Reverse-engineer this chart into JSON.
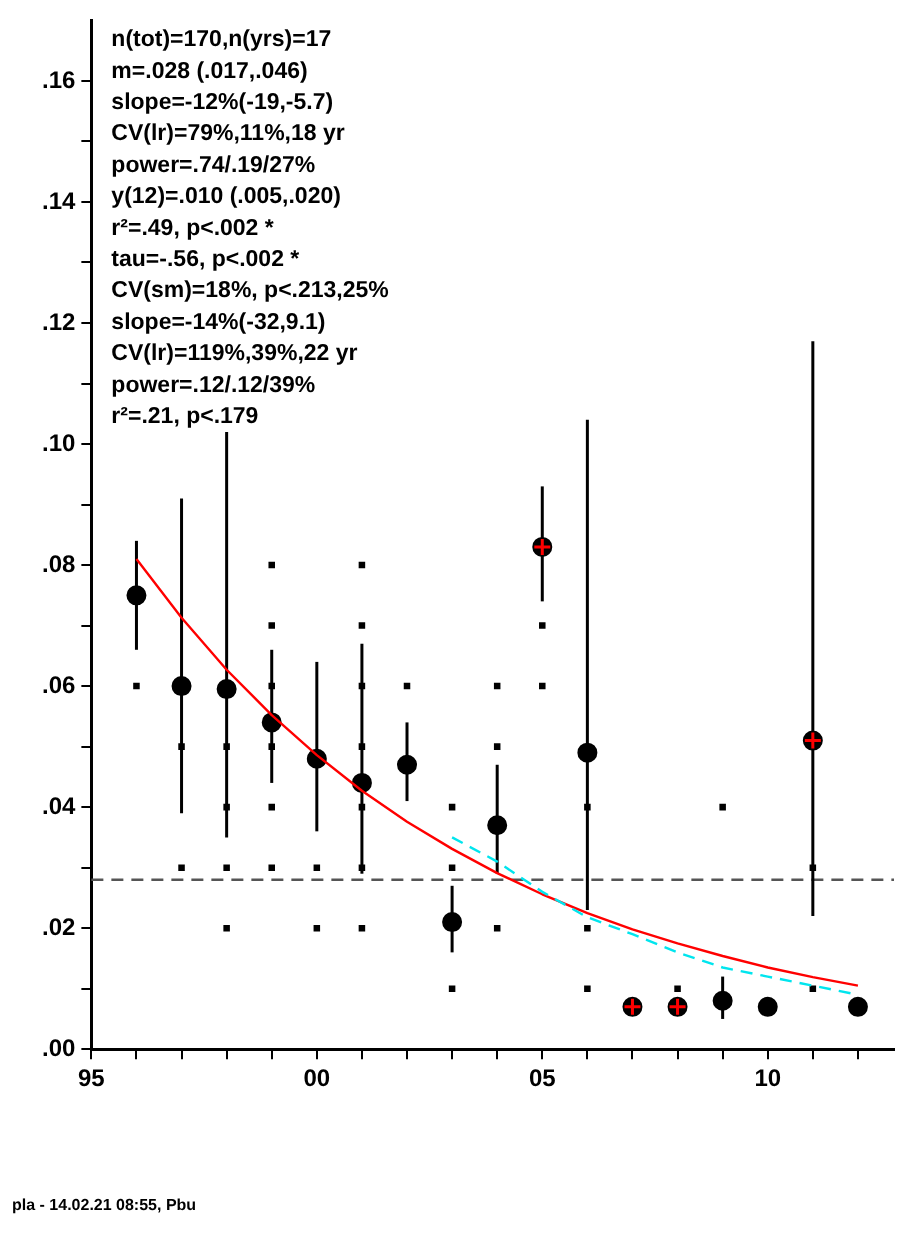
{
  "chart_data": {
    "type": "scatter",
    "xlim": [
      1995,
      2012.8
    ],
    "ylim": [
      0,
      0.17
    ],
    "xticks": [
      {
        "value": 1995,
        "label": "95"
      },
      {
        "value": 1996,
        "label": null
      },
      {
        "value": 1997,
        "label": null
      },
      {
        "value": 1998,
        "label": null
      },
      {
        "value": 1999,
        "label": null
      },
      {
        "value": 2000,
        "label": "00"
      },
      {
        "value": 2001,
        "label": null
      },
      {
        "value": 2002,
        "label": null
      },
      {
        "value": 2003,
        "label": null
      },
      {
        "value": 2004,
        "label": null
      },
      {
        "value": 2005,
        "label": "05"
      },
      {
        "value": 2006,
        "label": null
      },
      {
        "value": 2007,
        "label": null
      },
      {
        "value": 2008,
        "label": null
      },
      {
        "value": 2009,
        "label": null
      },
      {
        "value": 2010,
        "label": "10"
      },
      {
        "value": 2011,
        "label": null
      },
      {
        "value": 2012,
        "label": null
      }
    ],
    "yticks": [
      {
        "value": 0,
        "label": ".00"
      },
      {
        "value": 0.01,
        "label": null
      },
      {
        "value": 0.02,
        "label": ".02"
      },
      {
        "value": 0.03,
        "label": null
      },
      {
        "value": 0.04,
        "label": ".04"
      },
      {
        "value": 0.05,
        "label": null
      },
      {
        "value": 0.06,
        "label": ".06"
      },
      {
        "value": 0.07,
        "label": null
      },
      {
        "value": 0.08,
        "label": ".08"
      },
      {
        "value": 0.09,
        "label": null
      },
      {
        "value": 0.1,
        "label": ".10"
      },
      {
        "value": 0.11,
        "label": null
      },
      {
        "value": 0.12,
        "label": ".12"
      },
      {
        "value": 0.13,
        "label": null
      },
      {
        "value": 0.14,
        "label": ".14"
      },
      {
        "value": 0.15,
        "label": null
      },
      {
        "value": 0.16,
        "label": ".16"
      }
    ],
    "grid": false,
    "legend": false,
    "series": [
      {
        "marker": "square",
        "color": "#000000",
        "x": [
          1996,
          1997,
          1997,
          1998,
          1998,
          1998,
          1998,
          1999,
          1999,
          1999,
          1999,
          1999,
          1999,
          2000,
          2000,
          2001,
          2001,
          2001,
          2001,
          2001,
          2001,
          2001,
          2002,
          2003,
          2003,
          2003,
          2004,
          2004,
          2004,
          2005,
          2005,
          2006,
          2006,
          2006,
          2008,
          2009,
          2011,
          2011
        ],
        "values": [
          0.06,
          0.05,
          0.03,
          0.05,
          0.04,
          0.03,
          0.02,
          0.08,
          0.07,
          0.06,
          0.05,
          0.04,
          0.03,
          0.03,
          0.02,
          0.08,
          0.07,
          0.06,
          0.05,
          0.04,
          0.03,
          0.02,
          0.06,
          0.04,
          0.03,
          0.01,
          0.06,
          0.05,
          0.02,
          0.07,
          0.06,
          0.04,
          0.02,
          0.01,
          0.01,
          0.04,
          0.03,
          0.01
        ]
      },
      {
        "marker": "circle",
        "color": "#000000",
        "x": [
          1996,
          1997,
          1998,
          1999,
          2000,
          2001,
          2002,
          2003,
          2004,
          2005,
          2006,
          2007,
          2008,
          2009,
          2010,
          2011,
          2012
        ],
        "values": [
          0.075,
          0.06,
          0.0595,
          0.054,
          0.048,
          0.044,
          0.047,
          0.021,
          0.037,
          0.083,
          0.049,
          0.007,
          0.007,
          0.008,
          0.007,
          0.051,
          0.007
        ],
        "errors": [
          [
            0.066,
            0.084
          ],
          [
            0.039,
            0.091
          ],
          [
            0.035,
            0.102
          ],
          [
            0.044,
            0.066
          ],
          [
            0.036,
            0.064
          ],
          [
            0.029,
            0.067
          ],
          [
            0.041,
            0.054
          ],
          [
            0.016,
            0.027
          ],
          [
            0.029,
            0.047
          ],
          [
            0.074,
            0.093
          ],
          [
            0.023,
            0.104
          ],
          null,
          null,
          [
            0.005,
            0.012
          ],
          null,
          [
            0.022,
            0.117
          ],
          null
        ]
      },
      {
        "marker": "cross",
        "color": "#ff0000",
        "x": [
          2005,
          2007,
          2008,
          2011
        ],
        "values": [
          0.083,
          0.007,
          0.007,
          0.051
        ]
      },
      {
        "type": "line",
        "marker": "none",
        "line_style": "solid",
        "color": "#ff0000",
        "x": [
          1996,
          1997,
          1998,
          1999,
          2000,
          2001,
          2002,
          2003,
          2004,
          2005,
          2006,
          2007,
          2008,
          2009,
          2010,
          2011,
          2012
        ],
        "values": [
          0.081,
          0.0713,
          0.0627,
          0.0552,
          0.0486,
          0.0427,
          0.0376,
          0.0331,
          0.0291,
          0.0256,
          0.0225,
          0.0198,
          0.0175,
          0.0154,
          0.0135,
          0.0119,
          0.0105
        ]
      },
      {
        "type": "line",
        "marker": "none",
        "line_style": "dashed",
        "color": "#00e5ee",
        "x": [
          2003,
          2004,
          2005,
          2006,
          2007,
          2008,
          2009,
          2010,
          2011,
          2012
        ],
        "values": [
          0.035,
          0.031,
          0.026,
          0.0218,
          0.019,
          0.016,
          0.0135,
          0.012,
          0.0105,
          0.009
        ]
      }
    ],
    "ref_lines": [
      {
        "axis": "y",
        "value": 0.028,
        "color": "#555555",
        "line_style": "dashed"
      }
    ],
    "annotations": [
      "n(tot)=170,n(yrs)=17",
      "m=.028 (.017,.046)",
      "slope=-12%(-19,-5.7)",
      "CV(lr)=79%,11%,18 yr",
      "power=.74/.19/27%",
      "y(12)=.010 (.005,.020)",
      "r²=.49, p<.002 *",
      "tau=-.56, p<.002 *",
      "CV(sm)=18%, p<.213,25%",
      "slope=-14%(-32,9.1)",
      "CV(lr)=119%,39%,22 yr",
      "power=.12/.12/39%",
      "r²=.21, p<.179",
      "pla - 14.02.21  08:55,  Pbu"
    ]
  }
}
